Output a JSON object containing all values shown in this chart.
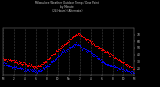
{
  "title": "Milwaukee Weather Outdoor Temp / Dew Point\nby Minute\n(24 Hours) (Alternate)",
  "bg_color": "#000000",
  "plot_bg_color": "#000000",
  "grid_color": "#555555",
  "temp_color": "#ff0000",
  "dew_color": "#0000ff",
  "ylabel_color": "#cccccc",
  "xlabel_color": "#cccccc",
  "title_color": "#cccccc",
  "ylim": [
    10,
    80
  ],
  "xlim": [
    0,
    1440
  ],
  "yticks": [
    20,
    30,
    40,
    50,
    60,
    70
  ],
  "xtick_positions": [
    0,
    120,
    240,
    360,
    480,
    600,
    720,
    840,
    960,
    1080,
    1200,
    1320,
    1440
  ],
  "xtick_labels": [
    "Mi",
    "2",
    "4",
    "6",
    "8",
    "10",
    "No",
    "2",
    "4",
    "6",
    "8",
    "10",
    "Mi"
  ]
}
